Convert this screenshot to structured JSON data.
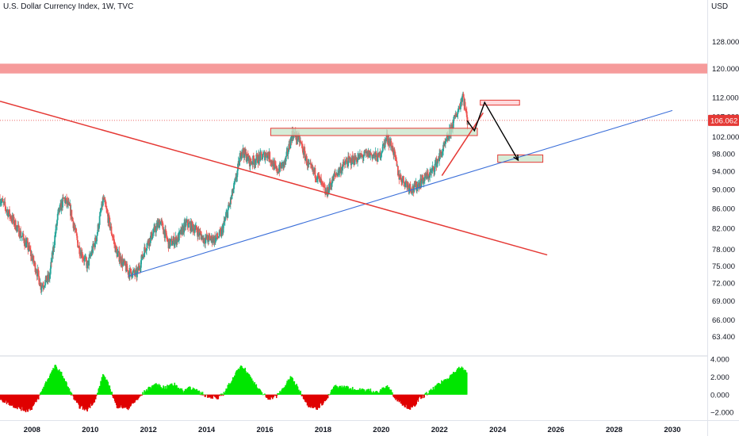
{
  "header": {
    "title": "U.S. Dollar Currency Index, 1W, TVC",
    "unit": "USD"
  },
  "chart_data": [
    {
      "type": "candlestick",
      "y_scale": "log",
      "ylim": [
        61,
        134
      ],
      "xlim": [
        2006.9,
        2031.2
      ],
      "y_ticks": [
        "128.000",
        "120.000",
        "112.000",
        "107.000",
        "102.000",
        "98.000",
        "94.000",
        "90.000",
        "86.000",
        "82.000",
        "78.000",
        "75.000",
        "72.000",
        "69.000",
        "66.000",
        "63.400"
      ],
      "y_tick_values": [
        128,
        120,
        112,
        107,
        102,
        98,
        94,
        90,
        86,
        82,
        78,
        75,
        72,
        69,
        66,
        63.4
      ],
      "x_ticks": [
        "2008",
        "2010",
        "2012",
        "2014",
        "2016",
        "2018",
        "2020",
        "2022",
        "2024",
        "2026",
        "2028",
        "2030"
      ],
      "x_tick_values": [
        2008,
        2010,
        2012,
        2014,
        2016,
        2018,
        2020,
        2022,
        2024,
        2026,
        2028,
        2030
      ],
      "last_price": "106.062",
      "last_value": 106.062,
      "colors": {
        "up": "#26a69a",
        "down": "#ef5350"
      },
      "price_path": [
        [
          2006.9,
          88.0
        ],
        [
          2007.4,
          83.0
        ],
        [
          2007.9,
          78.0
        ],
        [
          2008.2,
          73.5
        ],
        [
          2008.3,
          71.5
        ],
        [
          2008.6,
          73.0
        ],
        [
          2008.9,
          85.0
        ],
        [
          2009.1,
          88.0
        ],
        [
          2009.3,
          86.0
        ],
        [
          2009.6,
          78.5
        ],
        [
          2009.9,
          75.0
        ],
        [
          2010.2,
          80.0
        ],
        [
          2010.45,
          88.0
        ],
        [
          2010.7,
          82.0
        ],
        [
          2010.9,
          77.5
        ],
        [
          2011.3,
          74.0
        ],
        [
          2011.6,
          73.5
        ],
        [
          2011.9,
          78.5
        ],
        [
          2012.4,
          83.5
        ],
        [
          2012.7,
          79.0
        ],
        [
          2013.0,
          80.0
        ],
        [
          2013.3,
          83.0
        ],
        [
          2013.6,
          82.0
        ],
        [
          2013.9,
          80.0
        ],
        [
          2014.3,
          80.0
        ],
        [
          2014.5,
          81.0
        ],
        [
          2014.8,
          87.0
        ],
        [
          2015.0,
          92.0
        ],
        [
          2015.2,
          99.0
        ],
        [
          2015.5,
          96.0
        ],
        [
          2015.8,
          97.0
        ],
        [
          2016.1,
          98.0
        ],
        [
          2016.4,
          94.0
        ],
        [
          2016.7,
          96.0
        ],
        [
          2016.95,
          103.0
        ],
        [
          2017.2,
          101.0
        ],
        [
          2017.5,
          95.0
        ],
        [
          2017.8,
          93.0
        ],
        [
          2018.1,
          89.0
        ],
        [
          2018.4,
          93.0
        ],
        [
          2018.8,
          96.0
        ],
        [
          2019.2,
          97.0
        ],
        [
          2019.6,
          98.0
        ],
        [
          2019.9,
          97.0
        ],
        [
          2020.2,
          102.0
        ],
        [
          2020.4,
          99.0
        ],
        [
          2020.6,
          93.0
        ],
        [
          2020.9,
          91.0
        ],
        [
          2021.1,
          90.0
        ],
        [
          2021.4,
          92.0
        ],
        [
          2021.7,
          93.5
        ],
        [
          2021.9,
          96.0
        ],
        [
          2022.2,
          100.0
        ],
        [
          2022.5,
          106.0
        ],
        [
          2022.7,
          110.0
        ],
        [
          2022.8,
          113.0
        ],
        [
          2022.95,
          106.0
        ],
        [
          2023.0,
          106.06
        ]
      ],
      "resistance_zone": [
        118.6,
        121.4
      ],
      "support_line": {
        "x": [
          2011.3,
          2030.0
        ],
        "y": [
          73.2,
          108.6
        ]
      },
      "downtrend_line": {
        "x": [
          2006.9,
          2025.7
        ],
        "y": [
          111.0,
          77.0
        ]
      },
      "rising_segment": {
        "x": [
          2022.9,
          2023.5
        ],
        "y": [
          102.5,
          108.0
        ]
      },
      "boxes": [
        {
          "x": [
            2016.2,
            2023.3
          ],
          "y": [
            102.3,
            104.1
          ],
          "fill": "#c8e6c9"
        },
        {
          "x": [
            2023.4,
            2024.75
          ],
          "y": [
            110.0,
            111.3
          ],
          "fill": "#ffcdd2"
        },
        {
          "x": [
            2024.0,
            2025.55
          ],
          "y": [
            96.0,
            97.7
          ],
          "fill": "#c8e6c9"
        }
      ],
      "projection_path": {
        "x": [
          2022.95,
          2023.2,
          2023.55,
          2024.7
        ],
        "y": [
          106.0,
          103.5,
          110.7,
          96.5
        ]
      }
    },
    {
      "type": "histogram",
      "ylim": [
        -2.7,
        4.1
      ],
      "y_ticks": [
        "4.000",
        "2.000",
        "0.000",
        "−2.000"
      ],
      "y_tick_values": [
        4,
        2,
        0,
        -2
      ],
      "colors": {
        "up": "#00e600",
        "down": "#e00000"
      },
      "anchors": [
        [
          2006.9,
          -0.5
        ],
        [
          2007.4,
          -1.3
        ],
        [
          2007.8,
          -1.8
        ],
        [
          2008.0,
          -1.5
        ],
        [
          2008.2,
          -0.5
        ],
        [
          2008.5,
          1.5
        ],
        [
          2008.8,
          3.2
        ],
        [
          2009.05,
          2.2
        ],
        [
          2009.3,
          0.4
        ],
        [
          2009.6,
          -1.3
        ],
        [
          2009.9,
          -1.7
        ],
        [
          2010.2,
          -0.4
        ],
        [
          2010.45,
          2.3
        ],
        [
          2010.7,
          0.6
        ],
        [
          2010.9,
          -1.3
        ],
        [
          2011.3,
          -1.5
        ],
        [
          2011.6,
          -0.6
        ],
        [
          2011.9,
          0.4
        ],
        [
          2012.2,
          1.1
        ],
        [
          2012.6,
          0.8
        ],
        [
          2012.9,
          1.2
        ],
        [
          2013.2,
          0.3
        ],
        [
          2013.4,
          0.9
        ],
        [
          2013.7,
          0.3
        ],
        [
          2014.0,
          -0.1
        ],
        [
          2014.4,
          -0.4
        ],
        [
          2014.6,
          0.2
        ],
        [
          2014.9,
          1.8
        ],
        [
          2015.2,
          3.4
        ],
        [
          2015.5,
          2.0
        ],
        [
          2015.8,
          0.5
        ],
        [
          2016.1,
          -0.4
        ],
        [
          2016.4,
          -0.2
        ],
        [
          2016.7,
          1.0
        ],
        [
          2016.9,
          2.0
        ],
        [
          2017.2,
          0.4
        ],
        [
          2017.5,
          -1.2
        ],
        [
          2017.8,
          -1.5
        ],
        [
          2018.1,
          -0.6
        ],
        [
          2018.4,
          0.9
        ],
        [
          2018.8,
          0.8
        ],
        [
          2019.2,
          0.5
        ],
        [
          2019.6,
          0.5
        ],
        [
          2019.9,
          0.2
        ],
        [
          2020.2,
          1.0
        ],
        [
          2020.5,
          -0.4
        ],
        [
          2020.8,
          -1.2
        ],
        [
          2021.05,
          -1.6
        ],
        [
          2021.3,
          -0.5
        ],
        [
          2021.7,
          0.4
        ],
        [
          2022.0,
          1.2
        ],
        [
          2022.4,
          2.2
        ],
        [
          2022.7,
          3.0
        ],
        [
          2022.85,
          2.9
        ],
        [
          2022.95,
          2.3
        ]
      ]
    }
  ]
}
